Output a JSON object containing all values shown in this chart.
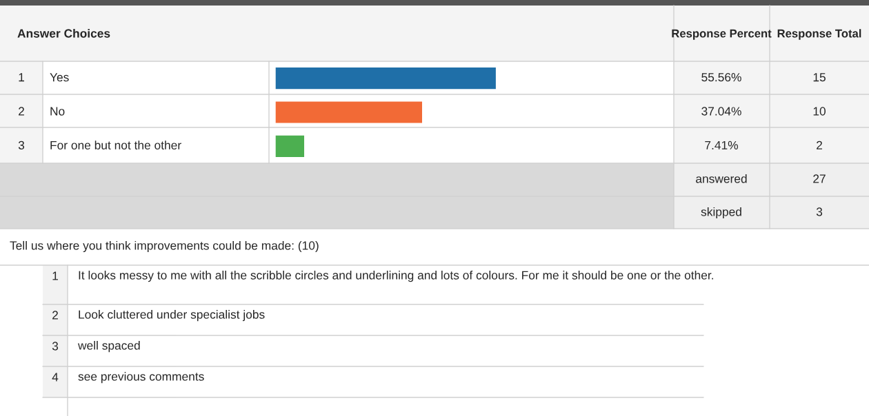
{
  "chart_data": {
    "type": "bar",
    "orientation": "horizontal",
    "title": "Answer Choices",
    "categories": [
      "Yes",
      "No",
      "For one but not the other"
    ],
    "values": [
      55.56,
      37.04,
      7.41
    ],
    "colors": [
      "#1f6fa8",
      "#f26a36",
      "#4caf50"
    ],
    "value_labels": [
      "55.56%",
      "37.04%",
      "7.41%"
    ],
    "xlim": [
      0,
      100
    ],
    "annotations": [
      "1",
      "2",
      "3",
      "Response Percent",
      "Response Total",
      "15",
      "10",
      "2",
      "answered",
      "27",
      "skipped",
      "3",
      "Tell us where you think improvements could be made: (10)",
      "1",
      "It looks messy to me with all the scribble circles and underlining and lots of colours. For me it should be one or the other.",
      "2",
      "Look cluttered under specialist jobs",
      "3",
      "well spaced",
      "4",
      "see previous comments"
    ]
  }
}
